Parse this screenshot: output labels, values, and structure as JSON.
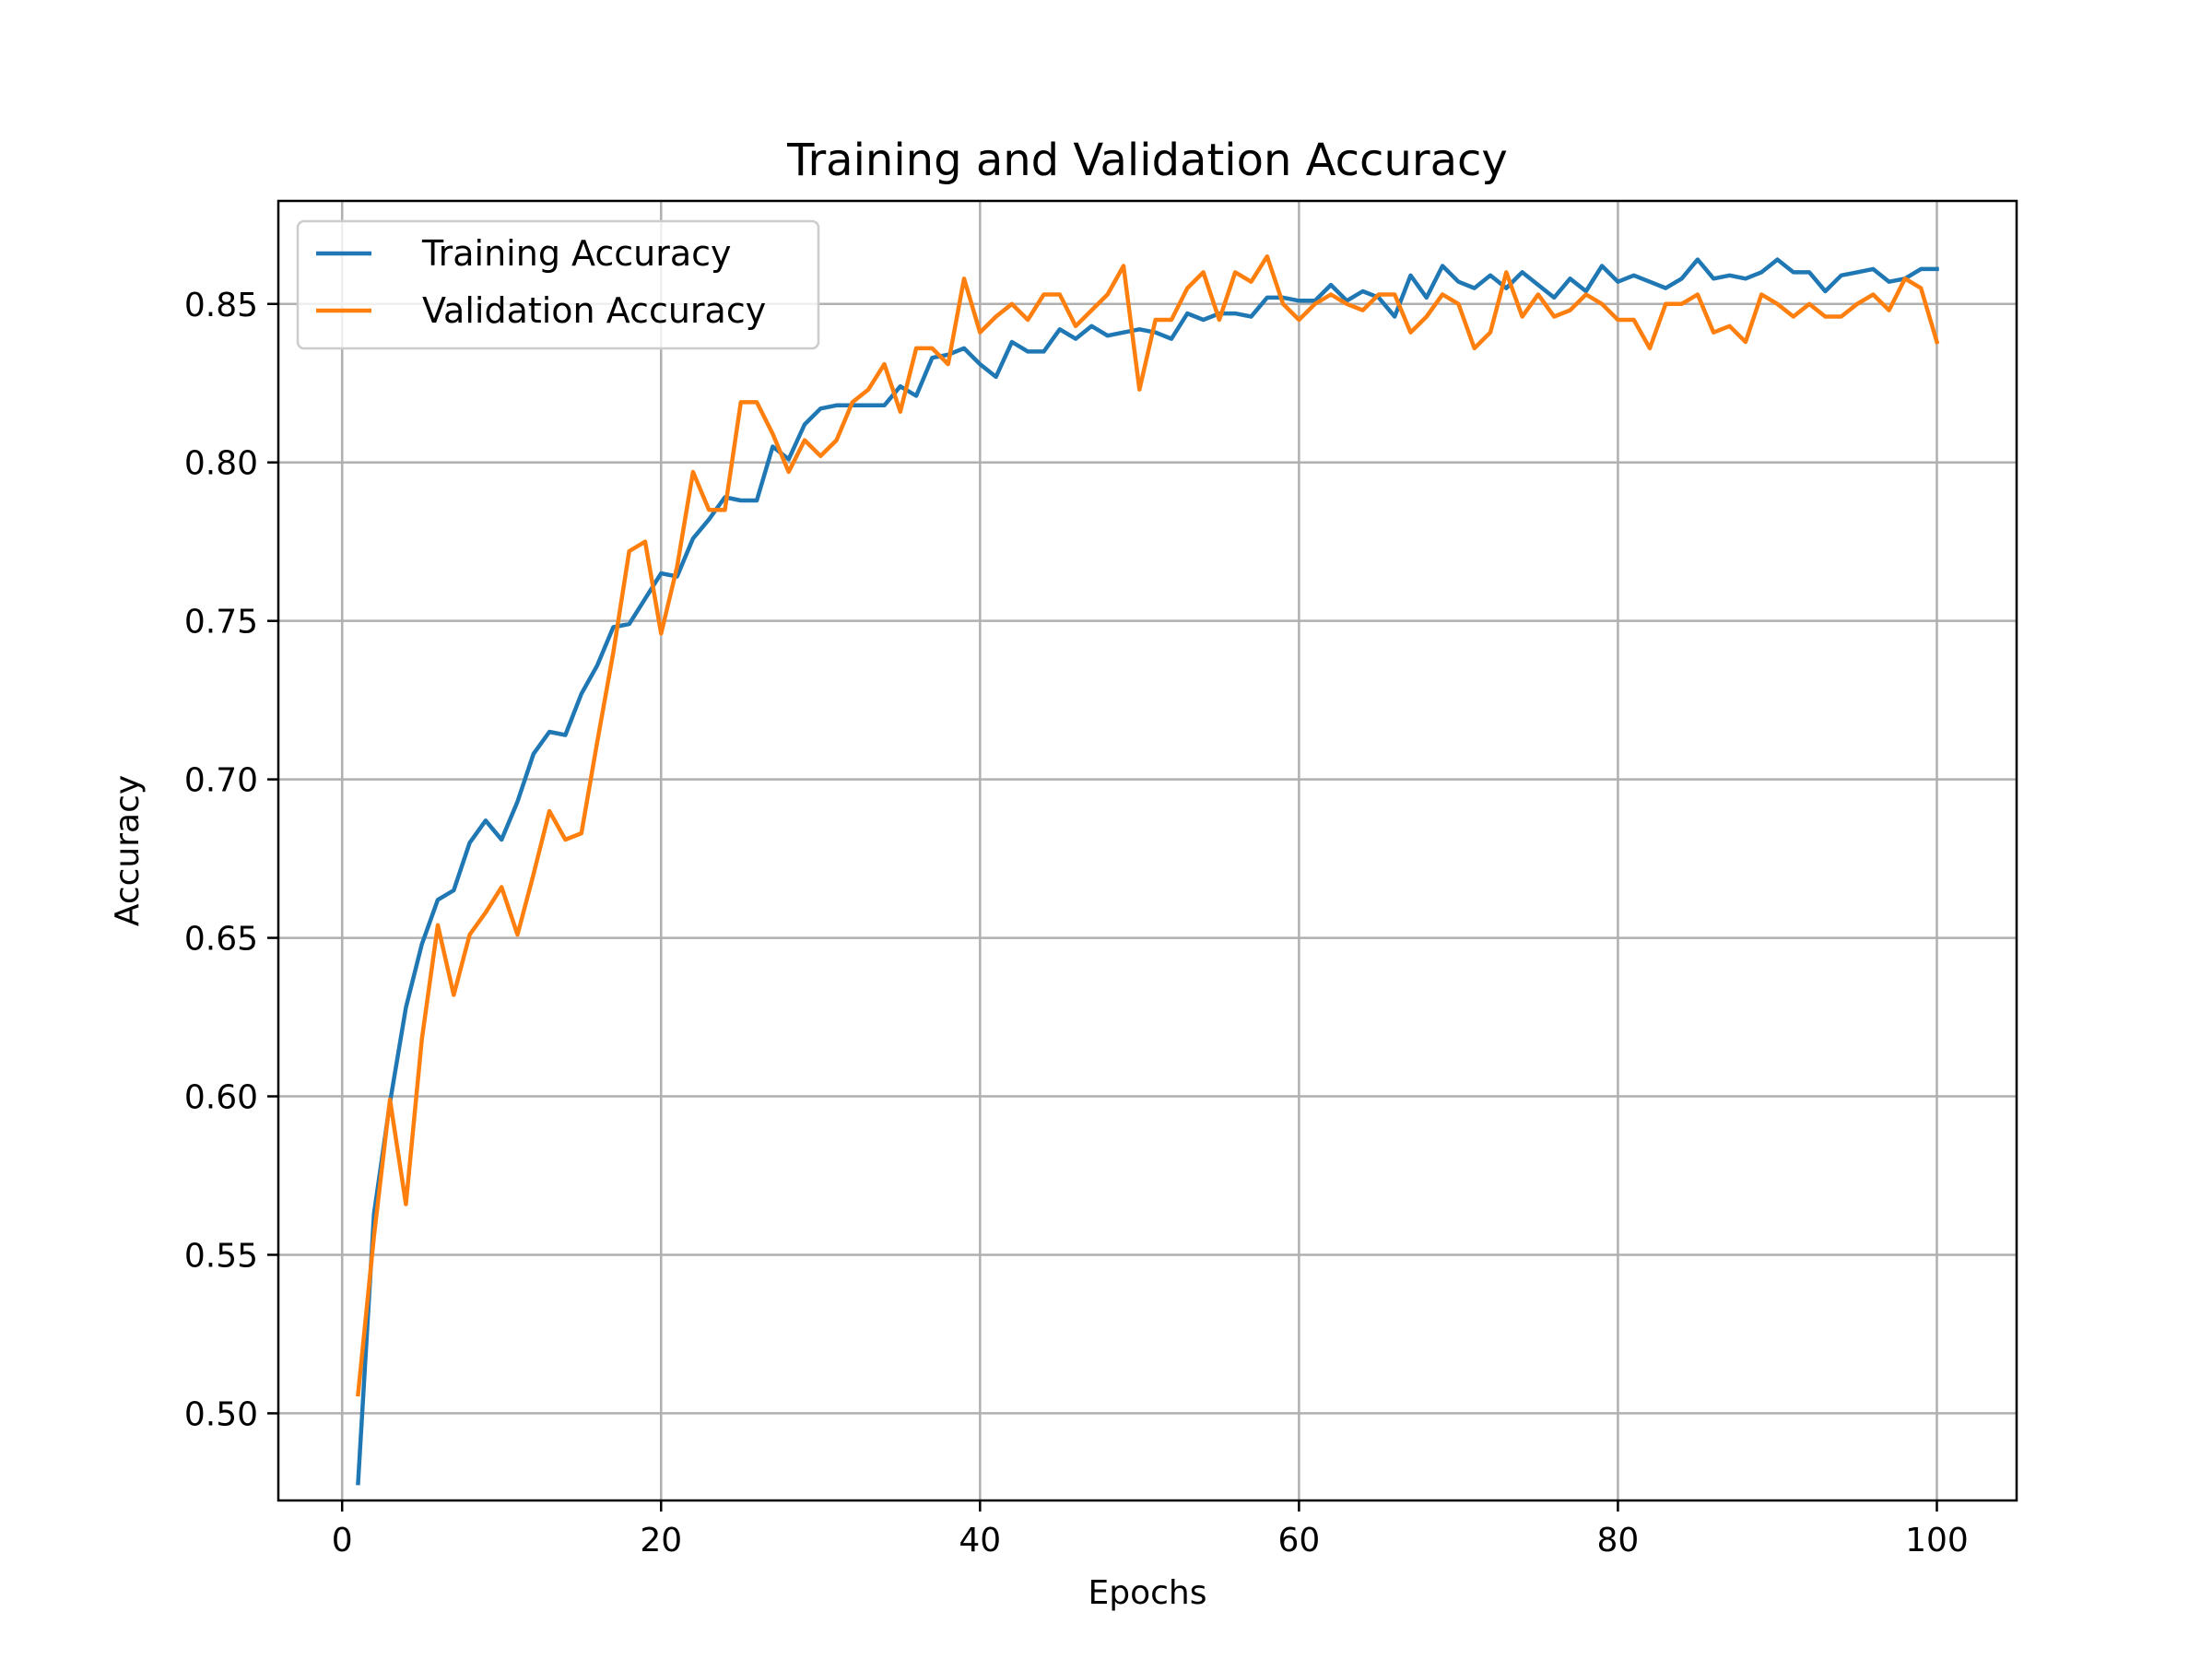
{
  "colors": {
    "training": "#1f77b4",
    "validation": "#ff7f0e",
    "grid": "#b0b0b0",
    "frame": "#000000",
    "background": "#ffffff"
  },
  "chart_data": {
    "type": "line",
    "title": "Training and Validation Accuracy",
    "xlabel": "Epochs",
    "ylabel": "Accuracy",
    "xlim": [
      -4,
      105
    ],
    "ylim": [
      0.4725,
      0.8825
    ],
    "xticks": [
      0,
      20,
      40,
      60,
      80,
      100
    ],
    "xtick_labels": [
      "0",
      "20",
      "40",
      "60",
      "80",
      "100"
    ],
    "yticks": [
      0.5,
      0.55,
      0.6,
      0.65,
      0.7,
      0.75,
      0.8,
      0.85
    ],
    "ytick_labels": [
      "0.50",
      "0.55",
      "0.60",
      "0.65",
      "0.70",
      "0.75",
      "0.80",
      "0.85"
    ],
    "grid": true,
    "legend_position": "upper-left",
    "x": [
      1,
      2,
      3,
      4,
      5,
      6,
      7,
      8,
      9,
      10,
      11,
      12,
      13,
      14,
      15,
      16,
      17,
      18,
      19,
      20,
      21,
      22,
      23,
      24,
      25,
      26,
      27,
      28,
      29,
      30,
      31,
      32,
      33,
      34,
      35,
      36,
      37,
      38,
      39,
      40,
      41,
      42,
      43,
      44,
      45,
      46,
      47,
      48,
      49,
      50,
      51,
      52,
      53,
      54,
      55,
      56,
      57,
      58,
      59,
      60,
      61,
      62,
      63,
      64,
      65,
      66,
      67,
      68,
      69,
      70,
      71,
      72,
      73,
      74,
      75,
      76,
      77,
      78,
      79,
      80,
      81,
      82,
      83,
      84,
      85,
      86,
      87,
      88,
      89,
      90,
      91,
      92,
      93,
      94,
      95,
      96,
      97,
      98,
      99,
      100
    ],
    "series": [
      {
        "name": "Training Accuracy",
        "values": [
          0.478,
          0.563,
          0.598,
          0.628,
          0.648,
          0.662,
          0.665,
          0.68,
          0.687,
          0.681,
          0.693,
          0.708,
          0.715,
          0.714,
          0.727,
          0.736,
          0.748,
          0.749,
          0.757,
          0.765,
          0.764,
          0.776,
          0.782,
          0.789,
          0.788,
          0.788,
          0.805,
          0.801,
          0.812,
          0.817,
          0.818,
          0.818,
          0.818,
          0.818,
          0.824,
          0.821,
          0.833,
          0.834,
          0.836,
          0.831,
          0.827,
          0.838,
          0.835,
          0.835,
          0.842,
          0.839,
          0.843,
          0.84,
          0.841,
          0.842,
          0.841,
          0.839,
          0.847,
          0.845,
          0.847,
          0.847,
          0.846,
          0.852,
          0.852,
          0.851,
          0.851,
          0.856,
          0.851,
          0.854,
          0.852,
          0.846,
          0.859,
          0.852,
          0.862,
          0.857,
          0.855,
          0.859,
          0.855,
          0.86,
          0.856,
          0.852,
          0.858,
          0.854,
          0.862,
          0.857,
          0.859,
          0.857,
          0.855,
          0.858,
          0.864,
          0.858,
          0.859,
          0.858,
          0.86,
          0.864,
          0.86,
          0.86,
          0.854,
          0.859,
          0.86,
          0.861,
          0.857,
          0.858,
          0.861,
          0.861
        ]
      },
      {
        "name": "Validation Accuracy",
        "values": [
          0.506,
          0.556,
          0.599,
          0.566,
          0.618,
          0.654,
          0.632,
          0.651,
          0.658,
          0.666,
          0.651,
          0.67,
          0.69,
          0.681,
          0.683,
          0.712,
          0.74,
          0.772,
          0.775,
          0.746,
          0.767,
          0.797,
          0.785,
          0.785,
          0.819,
          0.819,
          0.809,
          0.797,
          0.807,
          0.802,
          0.807,
          0.819,
          0.823,
          0.831,
          0.816,
          0.836,
          0.836,
          0.831,
          0.858,
          0.841,
          0.846,
          0.85,
          0.845,
          0.853,
          0.853,
          0.843,
          0.848,
          0.853,
          0.862,
          0.823,
          0.845,
          0.845,
          0.855,
          0.86,
          0.845,
          0.86,
          0.857,
          0.865,
          0.85,
          0.845,
          0.85,
          0.853,
          0.85,
          0.848,
          0.853,
          0.853,
          0.841,
          0.846,
          0.853,
          0.85,
          0.836,
          0.841,
          0.86,
          0.846,
          0.853,
          0.846,
          0.848,
          0.853,
          0.85,
          0.845,
          0.845,
          0.836,
          0.85,
          0.85,
          0.853,
          0.841,
          0.843,
          0.838,
          0.853,
          0.85,
          0.846,
          0.85,
          0.846,
          0.846,
          0.85,
          0.853,
          0.848,
          0.858,
          0.855,
          0.838
        ]
      }
    ]
  }
}
